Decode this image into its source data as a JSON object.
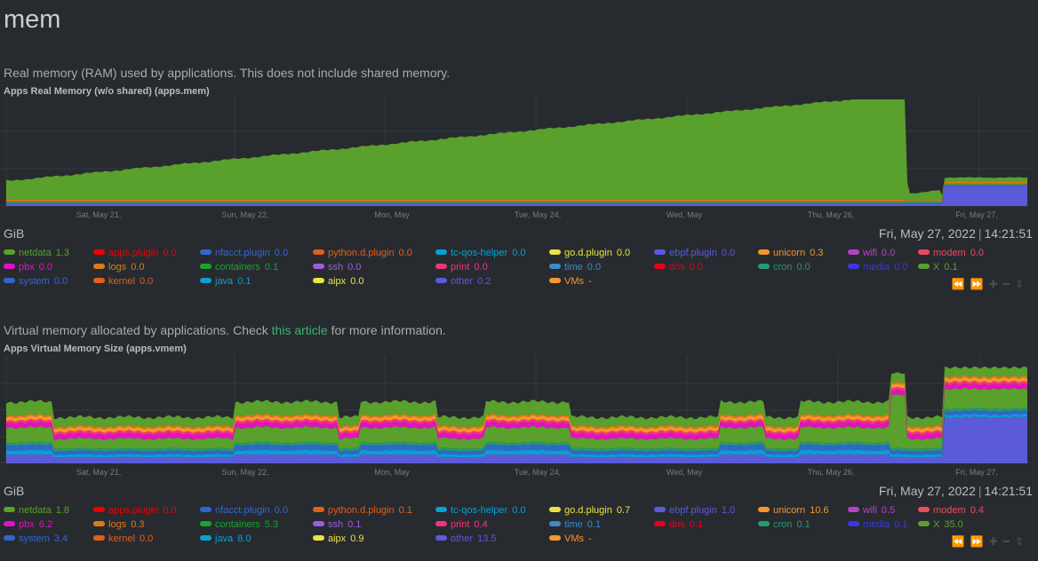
{
  "section": {
    "title": "mem"
  },
  "ram": {
    "description": "Real memory (RAM) used by applications. This does not include shared memory.",
    "chart_title": "Apps Real Memory (w/o shared) (apps.mem)",
    "unit": "GiB",
    "timestamp_date": "Fri, May 27, 2022",
    "timestamp_time": "14:21:51",
    "x_ticks": [
      "Sat, May 21,",
      "Sun, May 22,",
      "Mon, May",
      "Tue, May 24,",
      "Wed, May",
      "Thu, May 26,",
      "Fri, May 27,"
    ],
    "legend": [
      {
        "name": "netdata",
        "value": "1.3",
        "color": "#5aa02c"
      },
      {
        "name": "apps.plugin",
        "value": "0.0",
        "color": "#ee0000"
      },
      {
        "name": "nfacct.plugin",
        "value": "0.0",
        "color": "#3366cc"
      },
      {
        "name": "python.d.plugin",
        "value": "0.0",
        "color": "#e35d1b"
      },
      {
        "name": "tc-qos-helper",
        "value": "0.0",
        "color": "#0aa0d0"
      },
      {
        "name": "go.d.plugin",
        "value": "0.0",
        "color": "#ebe342"
      },
      {
        "name": "ebpf.plugin",
        "value": "0.0",
        "color": "#5b5bd9"
      },
      {
        "name": "unicorn",
        "value": "0.3",
        "color": "#f7962e"
      },
      {
        "name": "wifi",
        "value": "0.0",
        "color": "#b443c4"
      },
      {
        "name": "modem",
        "value": "0.0",
        "color": "#e84c5d"
      },
      {
        "name": "pbx",
        "value": "0.0",
        "color": "#e60fc3"
      },
      {
        "name": "logs",
        "value": "0.0",
        "color": "#d97c19"
      },
      {
        "name": "containers",
        "value": "0.1",
        "color": "#16a52c"
      },
      {
        "name": "ssh",
        "value": "0.0",
        "color": "#9e5de0"
      },
      {
        "name": "print",
        "value": "0.0",
        "color": "#f0357d"
      },
      {
        "name": "time",
        "value": "0.0",
        "color": "#3e8ac4"
      },
      {
        "name": "dns",
        "value": "0.0",
        "color": "#e8001a"
      },
      {
        "name": "cron",
        "value": "0.0",
        "color": "#239b6e"
      },
      {
        "name": "media",
        "value": "0.0",
        "color": "#3a36e8"
      },
      {
        "name": "X",
        "value": "0.1",
        "color": "#5aa02c"
      },
      {
        "name": "system",
        "value": "0.0",
        "color": "#3366cc"
      },
      {
        "name": "kernel",
        "value": "0.0",
        "color": "#e35d1b"
      },
      {
        "name": "java",
        "value": "0.1",
        "color": "#0aa0d0"
      },
      {
        "name": "aipx",
        "value": "0.0",
        "color": "#ebe342"
      },
      {
        "name": "other",
        "value": "0.2",
        "color": "#5b5bd9"
      },
      {
        "name": "VMs",
        "value": "-",
        "color": "#f7962e"
      }
    ]
  },
  "vmem": {
    "description_before": "Virtual memory allocated by applications. Check ",
    "description_link": "this article",
    "description_after": " for more information.",
    "chart_title": "Apps Virtual Memory Size (apps.vmem)",
    "unit": "GiB",
    "timestamp_date": "Fri, May 27, 2022",
    "timestamp_time": "14:21:51",
    "x_ticks": [
      "Sat, May 21,",
      "Sun, May 22,",
      "Mon, May",
      "Tue, May 24,",
      "Wed, May",
      "Thu, May 26,",
      "Fri, May 27,"
    ],
    "legend": [
      {
        "name": "netdata",
        "value": "1.8",
        "color": "#5aa02c"
      },
      {
        "name": "apps.plugin",
        "value": "0.0",
        "color": "#ee0000"
      },
      {
        "name": "nfacct.plugin",
        "value": "0.0",
        "color": "#3366cc"
      },
      {
        "name": "python.d.plugin",
        "value": "0.1",
        "color": "#e35d1b"
      },
      {
        "name": "tc-qos-helper",
        "value": "0.0",
        "color": "#0aa0d0"
      },
      {
        "name": "go.d.plugin",
        "value": "0.7",
        "color": "#ebe342"
      },
      {
        "name": "ebpf.plugin",
        "value": "1.0",
        "color": "#5b5bd9"
      },
      {
        "name": "unicorn",
        "value": "10.6",
        "color": "#f7962e"
      },
      {
        "name": "wifi",
        "value": "0.5",
        "color": "#b443c4"
      },
      {
        "name": "modem",
        "value": "0.4",
        "color": "#e84c5d"
      },
      {
        "name": "pbx",
        "value": "6.2",
        "color": "#e60fc3"
      },
      {
        "name": "logs",
        "value": "0.3",
        "color": "#d97c19"
      },
      {
        "name": "containers",
        "value": "5.3",
        "color": "#16a52c"
      },
      {
        "name": "ssh",
        "value": "0.1",
        "color": "#9e5de0"
      },
      {
        "name": "print",
        "value": "0.4",
        "color": "#f0357d"
      },
      {
        "name": "time",
        "value": "0.1",
        "color": "#3e8ac4"
      },
      {
        "name": "dns",
        "value": "0.1",
        "color": "#e8001a"
      },
      {
        "name": "cron",
        "value": "0.1",
        "color": "#239b6e"
      },
      {
        "name": "media",
        "value": "0.1",
        "color": "#3a36e8"
      },
      {
        "name": "X",
        "value": "35.0",
        "color": "#5aa02c"
      },
      {
        "name": "system",
        "value": "3.4",
        "color": "#3366cc"
      },
      {
        "name": "kernel",
        "value": "0.0",
        "color": "#e35d1b"
      },
      {
        "name": "java",
        "value": "8.0",
        "color": "#0aa0d0"
      },
      {
        "name": "aipx",
        "value": "0.9",
        "color": "#ebe342"
      },
      {
        "name": "other",
        "value": "13.5",
        "color": "#5b5bd9"
      },
      {
        "name": "VMs",
        "value": "-",
        "color": "#f7962e"
      }
    ]
  },
  "toolbar": {
    "icons": [
      "rewind-icon",
      "fast-forward-icon",
      "zoom-in-icon",
      "zoom-out-icon",
      "resize-icon"
    ]
  }
}
